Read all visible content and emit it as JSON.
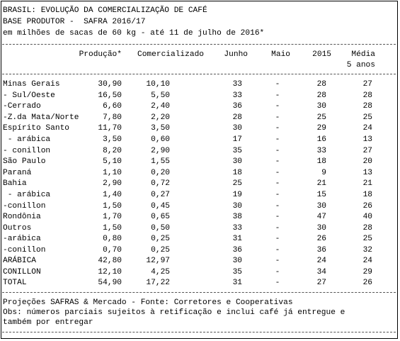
{
  "header": {
    "title": "BRASIL: EVOLUÇÃO DA COMERCIALIZAÇÃO DE CAFÉ",
    "subtitle": "BASE PRODUTOR -  SAFRA 2016/17",
    "units": "em milhões de sacas de 60 kg - até 11 de julho de 2016*"
  },
  "columns": {
    "producao": "Produção*",
    "comercializado": "Comercializado",
    "junho": "Junho",
    "maio": "Maio",
    "ano2015": "2015",
    "media": "Média",
    "media_sub": "5 anos"
  },
  "rows": [
    {
      "label": "Minas Gerais",
      "producao": "30,90",
      "comercializado": "10,10",
      "junho": "33",
      "maio": "-",
      "ano2015": "28",
      "media": "27"
    },
    {
      "label": "- Sul/Oeste",
      "producao": "16,50",
      "comercializado": "5,50",
      "junho": "33",
      "maio": "-",
      "ano2015": "28",
      "media": "28"
    },
    {
      "label": "-Cerrado",
      "producao": "6,60",
      "comercializado": "2,40",
      "junho": "36",
      "maio": "-",
      "ano2015": "30",
      "media": "28"
    },
    {
      "label": "-Z.da Mata/Norte",
      "producao": "7,80",
      "comercializado": "2,20",
      "junho": "28",
      "maio": "-",
      "ano2015": "25",
      "media": "25"
    },
    {
      "label": "Espírito Santo",
      "producao": "11,70",
      "comercializado": "3,50",
      "junho": "30",
      "maio": "-",
      "ano2015": "29",
      "media": "24"
    },
    {
      "label": " - arábica",
      "producao": "3,50",
      "comercializado": "0,60",
      "junho": "17",
      "maio": "-",
      "ano2015": "16",
      "media": "13"
    },
    {
      "label": "- conillon",
      "producao": "8,20",
      "comercializado": "2,90",
      "junho": "35",
      "maio": "-",
      "ano2015": "33",
      "media": "27"
    },
    {
      "label": "São Paulo",
      "producao": "5,10",
      "comercializado": "1,55",
      "junho": "30",
      "maio": "-",
      "ano2015": "18",
      "media": "20"
    },
    {
      "label": "Paraná",
      "producao": "1,10",
      "comercializado": "0,20",
      "junho": "18",
      "maio": "-",
      "ano2015": "9",
      "media": "13"
    },
    {
      "label": "Bahia",
      "producao": "2,90",
      "comercializado": "0,72",
      "junho": "25",
      "maio": "-",
      "ano2015": "21",
      "media": "21"
    },
    {
      "label": " - arábica",
      "producao": "1,40",
      "comercializado": "0,27",
      "junho": "19",
      "maio": "-",
      "ano2015": "15",
      "media": "18"
    },
    {
      "label": "-conillon",
      "producao": "1,50",
      "comercializado": "0,45",
      "junho": "30",
      "maio": "-",
      "ano2015": "30",
      "media": "26"
    },
    {
      "label": "Rondônia",
      "producao": "1,70",
      "comercializado": "0,65",
      "junho": "38",
      "maio": "-",
      "ano2015": "47",
      "media": "40"
    },
    {
      "label": "Outros",
      "producao": "1,50",
      "comercializado": "0,50",
      "junho": "33",
      "maio": "-",
      "ano2015": "30",
      "media": "28"
    },
    {
      "label": "-arábica",
      "producao": "0,80",
      "comercializado": "0,25",
      "junho": "31",
      "maio": "-",
      "ano2015": "26",
      "media": "25"
    },
    {
      "label": "-conillon",
      "producao": "0,70",
      "comercializado": "0,25",
      "junho": "36",
      "maio": "-",
      "ano2015": "36",
      "media": "32"
    }
  ],
  "totals": [
    {
      "label": "ARÁBICA",
      "producao": "42,80",
      "comercializado": "12,97",
      "junho": "30",
      "maio": "-",
      "ano2015": "24",
      "media": "24"
    },
    {
      "label": "CONILLON",
      "producao": "12,10",
      "comercializado": "4,25",
      "junho": "35",
      "maio": "-",
      "ano2015": "34",
      "media": "29"
    },
    {
      "label": "TOTAL",
      "producao": "54,90",
      "comercializado": "17,22",
      "junho": "31",
      "maio": "-",
      "ano2015": "27",
      "media": "26"
    }
  ],
  "footer": {
    "source": "Projeções SAFRAS & Mercado - Fonte: Corretores e Cooperativas",
    "note_line1": "Obs: números parciais sujeitos à retificação e inclui café já entregue e",
    "note_line2": "também por entregar"
  }
}
